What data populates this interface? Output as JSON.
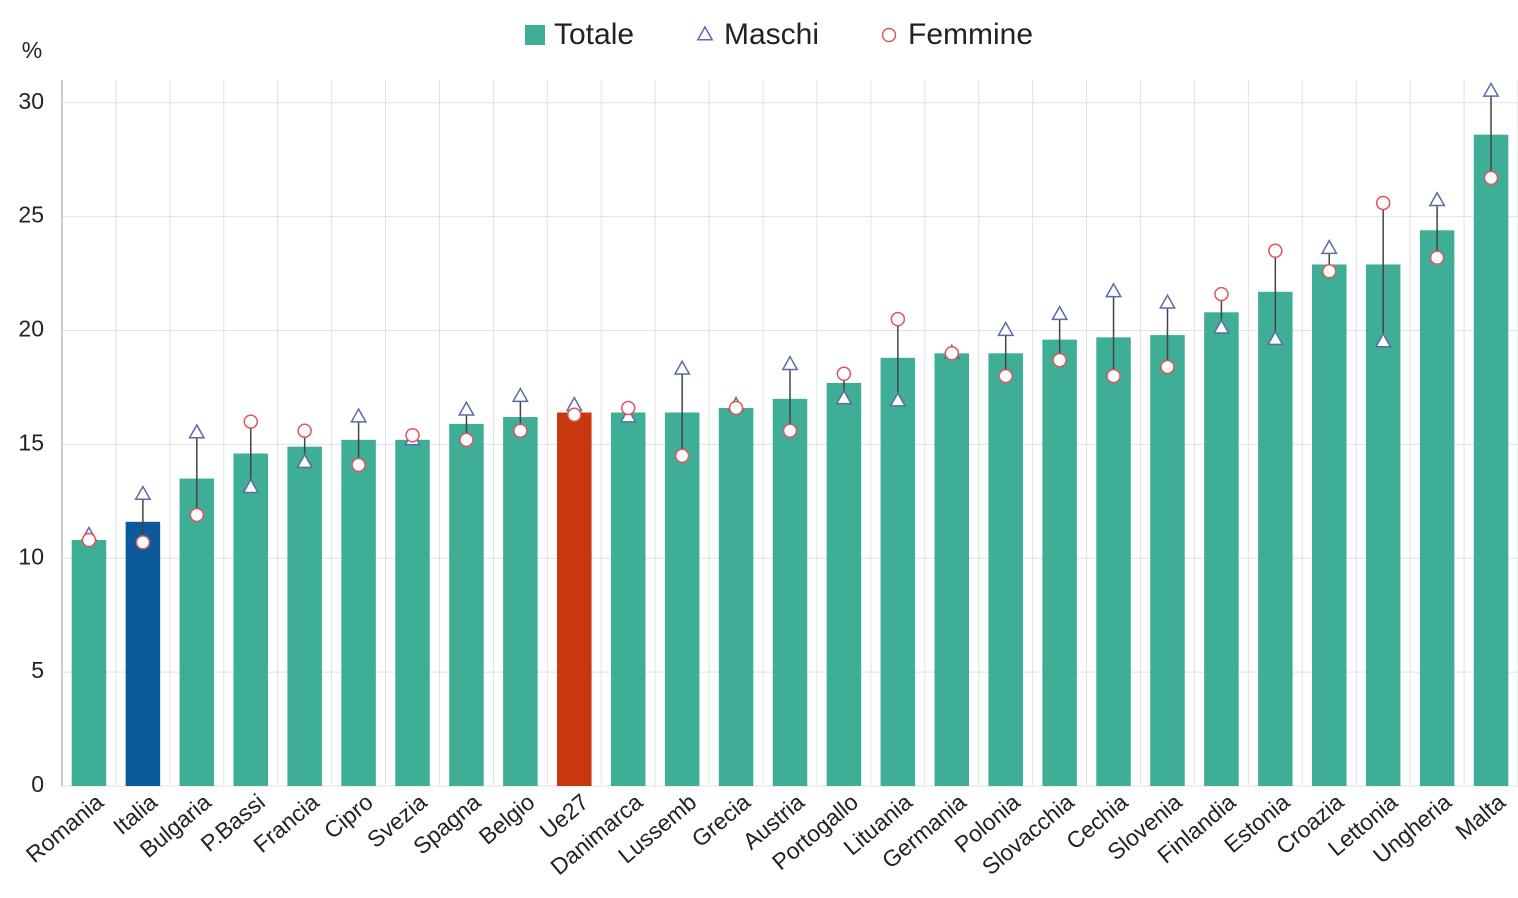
{
  "chart_data": {
    "type": "bar",
    "y_axis_label": "%",
    "categories": [
      "Romania",
      "Italia",
      "Bulgaria",
      "P.Bassi",
      "Francia",
      "Cipro",
      "Svezia",
      "Spagna",
      "Belgio",
      "Ue27",
      "Danimarca",
      "Lussemb",
      "Grecia",
      "Austria",
      "Portogallo",
      "Lituania",
      "Germania",
      "Polonia",
      "Slovacchia",
      "Cechia",
      "Slovenia",
      "Finlandia",
      "Estonia",
      "Croazia",
      "Lettonia",
      "Ungheria",
      "Malta"
    ],
    "series": [
      {
        "name": "Totale",
        "color": "#3fae96",
        "marker": "bar",
        "bar_colors": [
          "#3fae96",
          "#0a5a9c",
          "#3fae96",
          "#3fae96",
          "#3fae96",
          "#3fae96",
          "#3fae96",
          "#3fae96",
          "#3fae96",
          "#c8380f",
          "#3fae96",
          "#3fae96",
          "#3fae96",
          "#3fae96",
          "#3fae96",
          "#3fae96",
          "#3fae96",
          "#3fae96",
          "#3fae96",
          "#3fae96",
          "#3fae96",
          "#3fae96",
          "#3fae96",
          "#3fae96",
          "#3fae96",
          "#3fae96",
          "#3fae96"
        ],
        "values": [
          10.8,
          11.6,
          13.5,
          14.6,
          14.9,
          15.2,
          15.2,
          15.9,
          16.2,
          16.4,
          16.4,
          16.4,
          16.6,
          17.0,
          17.7,
          18.8,
          19.0,
          19.0,
          19.6,
          19.7,
          19.8,
          20.8,
          21.7,
          22.9,
          22.9,
          24.4,
          28.6
        ]
      },
      {
        "name": "Maschi",
        "color": "#5b6aa8",
        "marker": "triangle",
        "values": [
          11.0,
          12.8,
          15.5,
          13.1,
          14.2,
          16.2,
          15.2,
          16.5,
          17.1,
          16.7,
          16.2,
          18.3,
          16.7,
          18.5,
          17.0,
          16.9,
          19.0,
          20.0,
          20.7,
          21.7,
          21.2,
          20.1,
          19.6,
          23.6,
          19.5,
          25.7,
          30.5
        ]
      },
      {
        "name": "Femmine",
        "color": "#e0545a",
        "marker": "circle",
        "values": [
          10.8,
          10.7,
          11.9,
          16.0,
          15.6,
          14.1,
          15.4,
          15.2,
          15.6,
          16.3,
          16.6,
          14.5,
          16.6,
          15.6,
          18.1,
          20.5,
          19.0,
          18.0,
          18.7,
          18.0,
          18.4,
          21.6,
          23.5,
          22.6,
          25.6,
          23.2,
          26.7
        ]
      }
    ],
    "ylim": [
      0,
      31
    ],
    "yticks": [
      0,
      5,
      10,
      15,
      20,
      25,
      30
    ],
    "grid": true,
    "legend": "top"
  }
}
